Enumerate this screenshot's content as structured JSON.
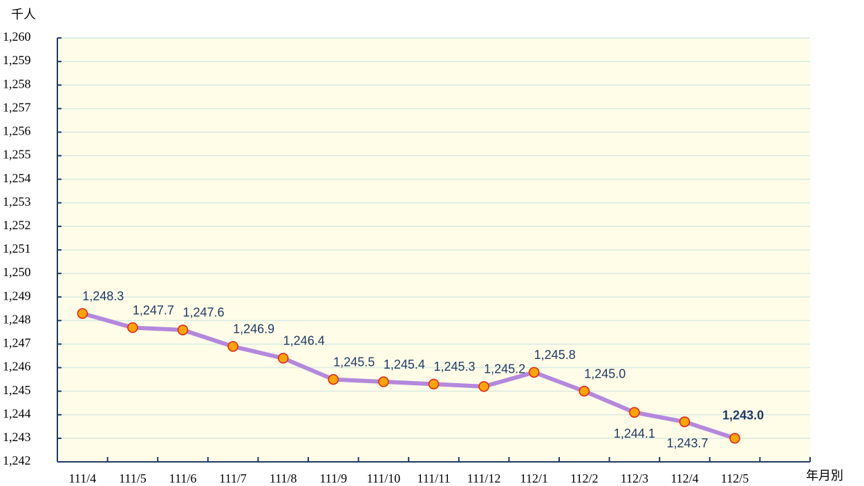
{
  "chart_data": {
    "type": "line",
    "y_axis_label": "千人",
    "x_axis_label": "年月別",
    "categories": [
      "111/4",
      "111/5",
      "111/6",
      "111/7",
      "111/8",
      "111/9",
      "111/10",
      "111/11",
      "111/12",
      "112/1",
      "112/2",
      "112/3",
      "112/4",
      "112/5"
    ],
    "series": [
      {
        "color": "#b388dd",
        "marker_color": "#ffa500",
        "values": [
          1248.3,
          1247.7,
          1247.6,
          1246.9,
          1246.4,
          1245.5,
          1245.4,
          1245.3,
          1245.2,
          1245.8,
          1245.0,
          1244.1,
          1243.7,
          1243.0
        ],
        "value_labels": [
          "1,248.3",
          "1,247.7",
          "1,247.6",
          "1,246.9",
          "1,246.4",
          "1,245.5",
          "1,245.4",
          "1,245.3",
          "1,245.2",
          "1,245.8",
          "1,245.0",
          "1,244.1",
          "1,243.7",
          "1,243.0"
        ]
      }
    ],
    "ylim": [
      1242,
      1260
    ],
    "yticks": [
      {
        "value": 1242,
        "label": "1,242"
      },
      {
        "value": 1243,
        "label": "1,243"
      },
      {
        "value": 1244,
        "label": "1,244"
      },
      {
        "value": 1245,
        "label": "1,245"
      },
      {
        "value": 1246,
        "label": "1,246"
      },
      {
        "value": 1247,
        "label": "1,247"
      },
      {
        "value": 1248,
        "label": "1,248"
      },
      {
        "value": 1249,
        "label": "1,249"
      },
      {
        "value": 1250,
        "label": "1,250"
      },
      {
        "value": 1251,
        "label": "1,251"
      },
      {
        "value": 1252,
        "label": "1,252"
      },
      {
        "value": 1253,
        "label": "1,253"
      },
      {
        "value": 1254,
        "label": "1,254"
      },
      {
        "value": 1255,
        "label": "1,255"
      },
      {
        "value": 1256,
        "label": "1,256"
      },
      {
        "value": 1257,
        "label": "1,257"
      },
      {
        "value": 1258,
        "label": "1,258"
      },
      {
        "value": 1259,
        "label": "1,259"
      },
      {
        "value": 1260,
        "label": "1,260"
      }
    ],
    "grid": true
  }
}
